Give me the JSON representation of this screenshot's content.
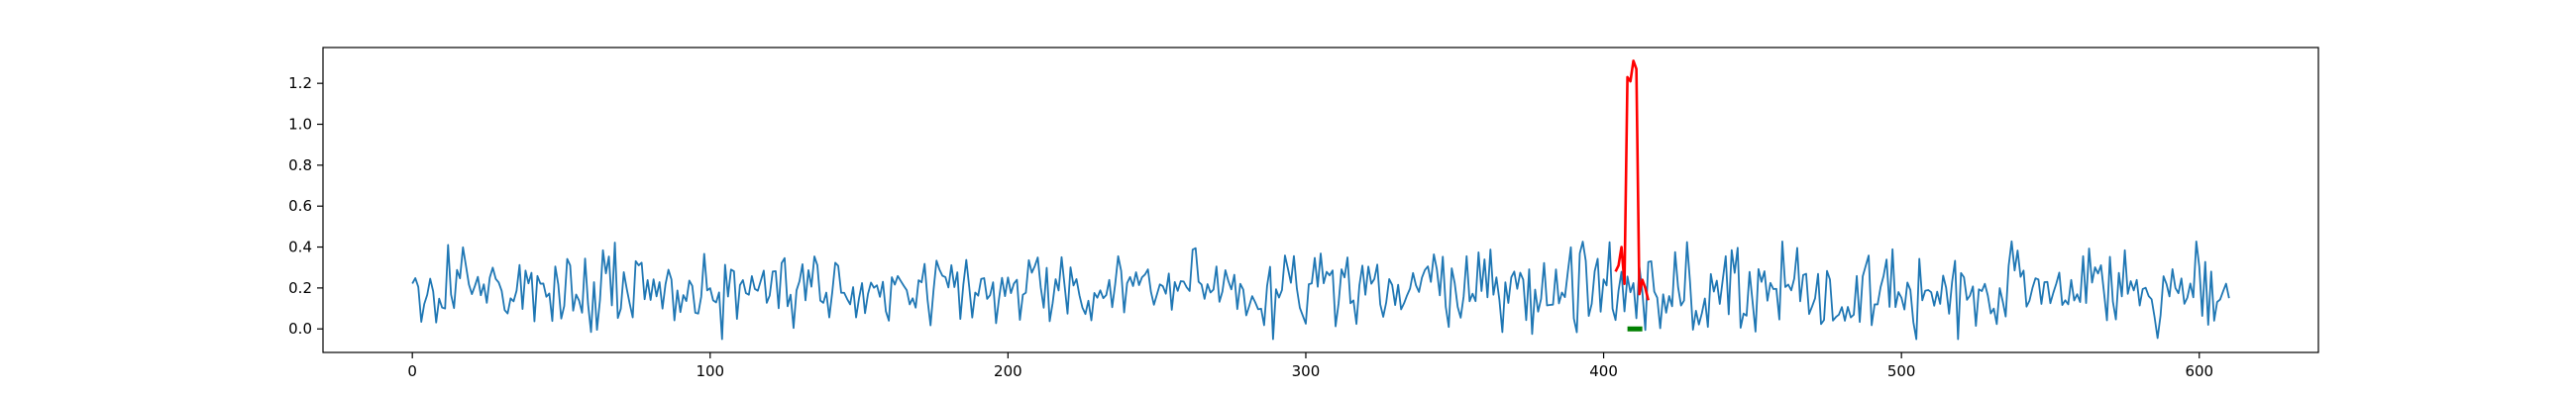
{
  "chart_data": {
    "type": "line",
    "title": "",
    "xlabel": "",
    "ylabel": "",
    "xlim": [
      -30,
      640
    ],
    "ylim": [
      -0.115,
      1.375
    ],
    "xticks": [
      0,
      100,
      200,
      300,
      400,
      500,
      600
    ],
    "yticks": [
      0.0,
      0.2,
      0.4,
      0.6,
      0.8,
      1.0,
      1.2
    ],
    "grid": false,
    "legend": "none",
    "series": [
      {
        "role": "signal",
        "color": "#1f77b4",
        "generator": {
          "count": 611,
          "x_start": 0,
          "x_step": 1,
          "base": 0.19,
          "amplitude": 0.12,
          "min": -0.05,
          "max": 0.43,
          "seed": 17
        }
      },
      {
        "role": "anomaly",
        "color": "#ff0000",
        "x": [
          404,
          405,
          406,
          407,
          408,
          409,
          410,
          411,
          412,
          413,
          414,
          415
        ],
        "y": [
          0.28,
          0.31,
          0.4,
          0.22,
          1.23,
          1.21,
          1.31,
          1.27,
          0.17,
          0.24,
          0.2,
          0.14
        ]
      }
    ],
    "markers": [
      {
        "role": "anomaly-interval",
        "color": "#008000",
        "x_start": 408,
        "x_end": 413,
        "y": 0.0
      }
    ]
  }
}
